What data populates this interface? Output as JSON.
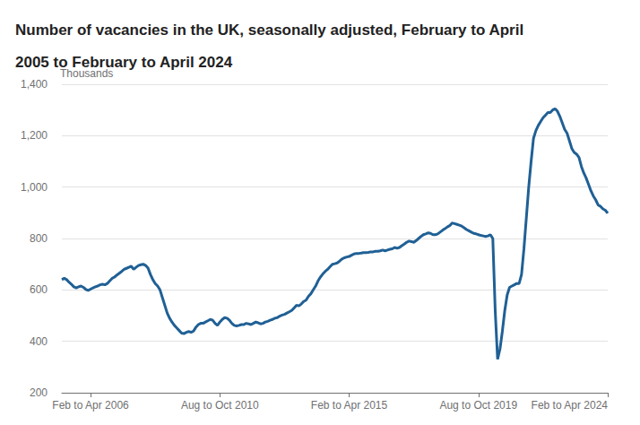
{
  "chart_data": {
    "type": "line",
    "title": "Number of vacancies in the UK, seasonally adjusted, February to April\n2005 to February to April 2024",
    "ylabel": "Thousands",
    "color": "#206095",
    "grid": true,
    "ylim": [
      200,
      1400
    ],
    "yticks": [
      200,
      400,
      600,
      800,
      {
        "value": 1000,
        "label": "1,000"
      },
      {
        "value": 1200,
        "label": "1,200"
      },
      {
        "value": 1400,
        "label": "1,400"
      }
    ],
    "categories": [
      null,
      null,
      null,
      null,
      null,
      null,
      null,
      null,
      null,
      null,
      null,
      null,
      "Feb to Apr 2006",
      null,
      null,
      null,
      null,
      null,
      null,
      null,
      null,
      null,
      null,
      null,
      null,
      null,
      null,
      null,
      null,
      null,
      null,
      null,
      null,
      null,
      null,
      null,
      null,
      null,
      null,
      null,
      null,
      null,
      null,
      null,
      null,
      null,
      null,
      null,
      null,
      null,
      null,
      null,
      null,
      null,
      null,
      null,
      null,
      null,
      null,
      null,
      null,
      null,
      null,
      null,
      null,
      null,
      "Aug to Oct 2010",
      null,
      null,
      null,
      null,
      null,
      null,
      null,
      null,
      null,
      null,
      null,
      null,
      null,
      null,
      null,
      null,
      null,
      null,
      null,
      null,
      null,
      null,
      null,
      null,
      null,
      null,
      null,
      null,
      null,
      null,
      null,
      null,
      null,
      null,
      null,
      null,
      null,
      null,
      null,
      null,
      null,
      null,
      null,
      null,
      null,
      null,
      null,
      null,
      null,
      null,
      null,
      null,
      null,
      "Feb to Apr 2015",
      null,
      null,
      null,
      null,
      null,
      null,
      null,
      null,
      null,
      null,
      null,
      null,
      null,
      null,
      null,
      null,
      null,
      null,
      null,
      null,
      null,
      null,
      null,
      null,
      null,
      null,
      null,
      null,
      null,
      null,
      null,
      null,
      null,
      null,
      null,
      null,
      null,
      null,
      null,
      null,
      null,
      null,
      null,
      null,
      null,
      null,
      null,
      null,
      null,
      null,
      null,
      null,
      null,
      "Aug to Oct 2019",
      null,
      null,
      null,
      null,
      null,
      null,
      null,
      null,
      null,
      null,
      null,
      null,
      null,
      null,
      null,
      null,
      null,
      null,
      null,
      null,
      null,
      null,
      null,
      null,
      null,
      null,
      null,
      null,
      null,
      null,
      null,
      null,
      null,
      null,
      null,
      null,
      null,
      null,
      null,
      null,
      null,
      null,
      null,
      null,
      null,
      null,
      null,
      null,
      null,
      null,
      null,
      null,
      null,
      "Feb to Apr 2024"
    ],
    "values": [
      640,
      645,
      640,
      630,
      622,
      612,
      608,
      612,
      615,
      610,
      602,
      598,
      603,
      608,
      612,
      615,
      620,
      622,
      620,
      625,
      635,
      645,
      650,
      658,
      665,
      672,
      680,
      684,
      688,
      692,
      680,
      688,
      695,
      698,
      700,
      695,
      685,
      660,
      640,
      625,
      615,
      600,
      570,
      540,
      510,
      490,
      475,
      462,
      452,
      442,
      432,
      430,
      435,
      438,
      435,
      440,
      455,
      465,
      470,
      470,
      475,
      480,
      485,
      482,
      470,
      462,
      475,
      485,
      492,
      490,
      482,
      470,
      462,
      460,
      462,
      465,
      465,
      470,
      468,
      465,
      470,
      475,
      472,
      468,
      470,
      475,
      478,
      482,
      485,
      490,
      492,
      498,
      502,
      505,
      510,
      515,
      520,
      530,
      540,
      538,
      545,
      555,
      560,
      575,
      585,
      600,
      615,
      635,
      650,
      662,
      672,
      680,
      690,
      700,
      702,
      705,
      712,
      720,
      725,
      728,
      730,
      735,
      740,
      742,
      742,
      743,
      745,
      745,
      746,
      748,
      748,
      750,
      750,
      752,
      755,
      752,
      755,
      758,
      760,
      765,
      762,
      765,
      772,
      778,
      785,
      790,
      788,
      785,
      792,
      800,
      808,
      815,
      818,
      822,
      820,
      815,
      815,
      818,
      825,
      832,
      838,
      845,
      850,
      860,
      858,
      855,
      852,
      848,
      842,
      835,
      830,
      825,
      820,
      818,
      815,
      812,
      810,
      808,
      810,
      815,
      800,
      520,
      330,
      370,
      440,
      520,
      580,
      610,
      615,
      620,
      625,
      625,
      660,
      760,
      880,
      1000,
      1100,
      1190,
      1220,
      1240,
      1255,
      1270,
      1280,
      1290,
      1290,
      1300,
      1305,
      1295,
      1275,
      1250,
      1225,
      1210,
      1180,
      1150,
      1135,
      1128,
      1115,
      1080,
      1055,
      1035,
      1010,
      985,
      965,
      950,
      930,
      925,
      915,
      910,
      898
    ]
  }
}
